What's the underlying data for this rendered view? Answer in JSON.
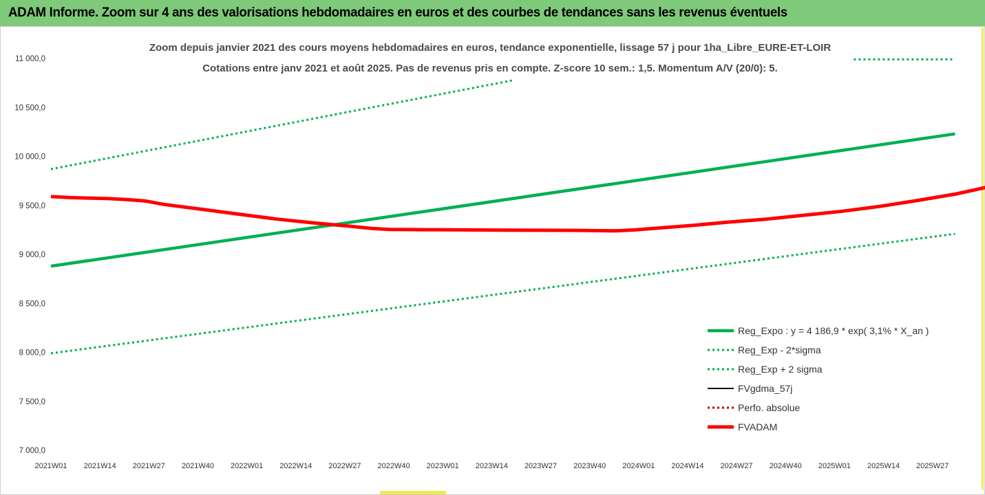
{
  "header": {
    "title": "ADAM Informe. Zoom sur 4 ans des valorisations hebdomadaires en euros et des courbes de tendances sans les revenus éventuels"
  },
  "colors": {
    "banner": "#7ec97a",
    "reg_expo": "#00b050",
    "fvgdma": "#000000",
    "perfo": "#c00000",
    "fvadam": "#ff0000",
    "accent": "#f5e94a"
  },
  "chart_data": {
    "type": "line",
    "title": "",
    "subtitle": [
      "Zoom depuis janvier 2021 des cours moyens hebdomadaires en euros, tendance exponentielle, lissage 57 j pour 1ha_Libre_EURE-ET-LOIR",
      "Cotations entre janv 2021 et août 2025.  Pas de revenus pris en compte. Z-score 10 sem.: 1,5. Momentum A/V (20/0): 5."
    ],
    "xlabel": "",
    "ylabel": "",
    "ylim": [
      7000,
      11000
    ],
    "ytick_values": [
      7000,
      7500,
      8000,
      8500,
      9000,
      9500,
      10000,
      10500,
      11000
    ],
    "ytick_labels": [
      "7 000,0",
      "7 500,0",
      "8 000,0",
      "8 500,0",
      "9 000,0",
      "9 500,0",
      "10 000,0",
      "10 500,0",
      "11 000,0"
    ],
    "x_tick_labels": [
      "2021W01",
      "2021W14",
      "2021W27",
      "2021W40",
      "2022W01",
      "2022W14",
      "2022W27",
      "2022W40",
      "2023W01",
      "2023W14",
      "2023W27",
      "2023W40",
      "2024W01",
      "2024W14",
      "2024W27",
      "2024W40",
      "2025W01",
      "2025W14",
      "2025W27"
    ],
    "x_last_label": "2025W27",
    "x_span_weeks": 241,
    "grid": false,
    "legend_position": "bottom-right",
    "series": [
      {
        "name": "Reg_Expo : y = 4 186,9 * exp( 3,1% *  X_an )",
        "style": "solid-thick",
        "color": "#00b050",
        "points": [
          [
            0,
            8880
          ],
          [
            240,
            10230
          ]
        ]
      },
      {
        "name": "Reg_Exp - 2*sigma",
        "style": "dotted",
        "color": "#00b050",
        "points": [
          [
            0,
            7990
          ],
          [
            240,
            9210
          ]
        ]
      },
      {
        "name": "Reg_Exp + 2 sigma",
        "style": "dotted",
        "color": "#00b050",
        "points": [
          [
            0,
            9870
          ],
          [
            123,
            10780
          ]
        ],
        "tail_points": [
          [
            153,
            10990
          ],
          [
            240,
            10990
          ]
        ]
      },
      {
        "name": "FVgdma_57j",
        "style": "solid",
        "color": "#000000",
        "points": [
          [
            0,
            9590
          ],
          [
            5,
            9580
          ],
          [
            10,
            9575
          ],
          [
            15,
            9565
          ],
          [
            20,
            9555
          ],
          [
            25,
            9540
          ],
          [
            30,
            9510
          ],
          [
            40,
            9460
          ],
          [
            50,
            9410
          ],
          [
            60,
            9360
          ],
          [
            70,
            9320
          ],
          [
            80,
            9285
          ],
          [
            85,
            9270
          ],
          [
            90,
            9260
          ],
          [
            100,
            9255
          ],
          [
            110,
            9252
          ],
          [
            120,
            9250
          ],
          [
            140,
            9250
          ],
          [
            150,
            9250
          ],
          [
            155,
            9255
          ],
          [
            160,
            9270
          ],
          [
            170,
            9295
          ],
          [
            180,
            9330
          ],
          [
            190,
            9360
          ],
          [
            200,
            9400
          ],
          [
            210,
            9440
          ],
          [
            220,
            9490
          ],
          [
            230,
            9550
          ],
          [
            240,
            9615
          ],
          [
            252,
            9710
          ]
        ]
      },
      {
        "name": "Perfo. absolue",
        "style": "dotted",
        "color": "#c00000",
        "points": []
      },
      {
        "name": "FVADAM",
        "style": "solid-thick",
        "color": "#ff0000",
        "points": [
          [
            0,
            9590
          ],
          [
            5,
            9580
          ],
          [
            10,
            9575
          ],
          [
            15,
            9570
          ],
          [
            20,
            9560
          ],
          [
            25,
            9545
          ],
          [
            30,
            9510
          ],
          [
            40,
            9460
          ],
          [
            50,
            9410
          ],
          [
            60,
            9360
          ],
          [
            70,
            9320
          ],
          [
            80,
            9285
          ],
          [
            85,
            9265
          ],
          [
            90,
            9255
          ],
          [
            100,
            9252
          ],
          [
            110,
            9250
          ],
          [
            120,
            9248
          ],
          [
            140,
            9245
          ],
          [
            150,
            9240
          ],
          [
            155,
            9250
          ],
          [
            160,
            9265
          ],
          [
            170,
            9295
          ],
          [
            180,
            9330
          ],
          [
            190,
            9360
          ],
          [
            200,
            9400
          ],
          [
            210,
            9440
          ],
          [
            220,
            9490
          ],
          [
            230,
            9550
          ],
          [
            240,
            9615
          ],
          [
            252,
            9715
          ]
        ]
      }
    ]
  }
}
